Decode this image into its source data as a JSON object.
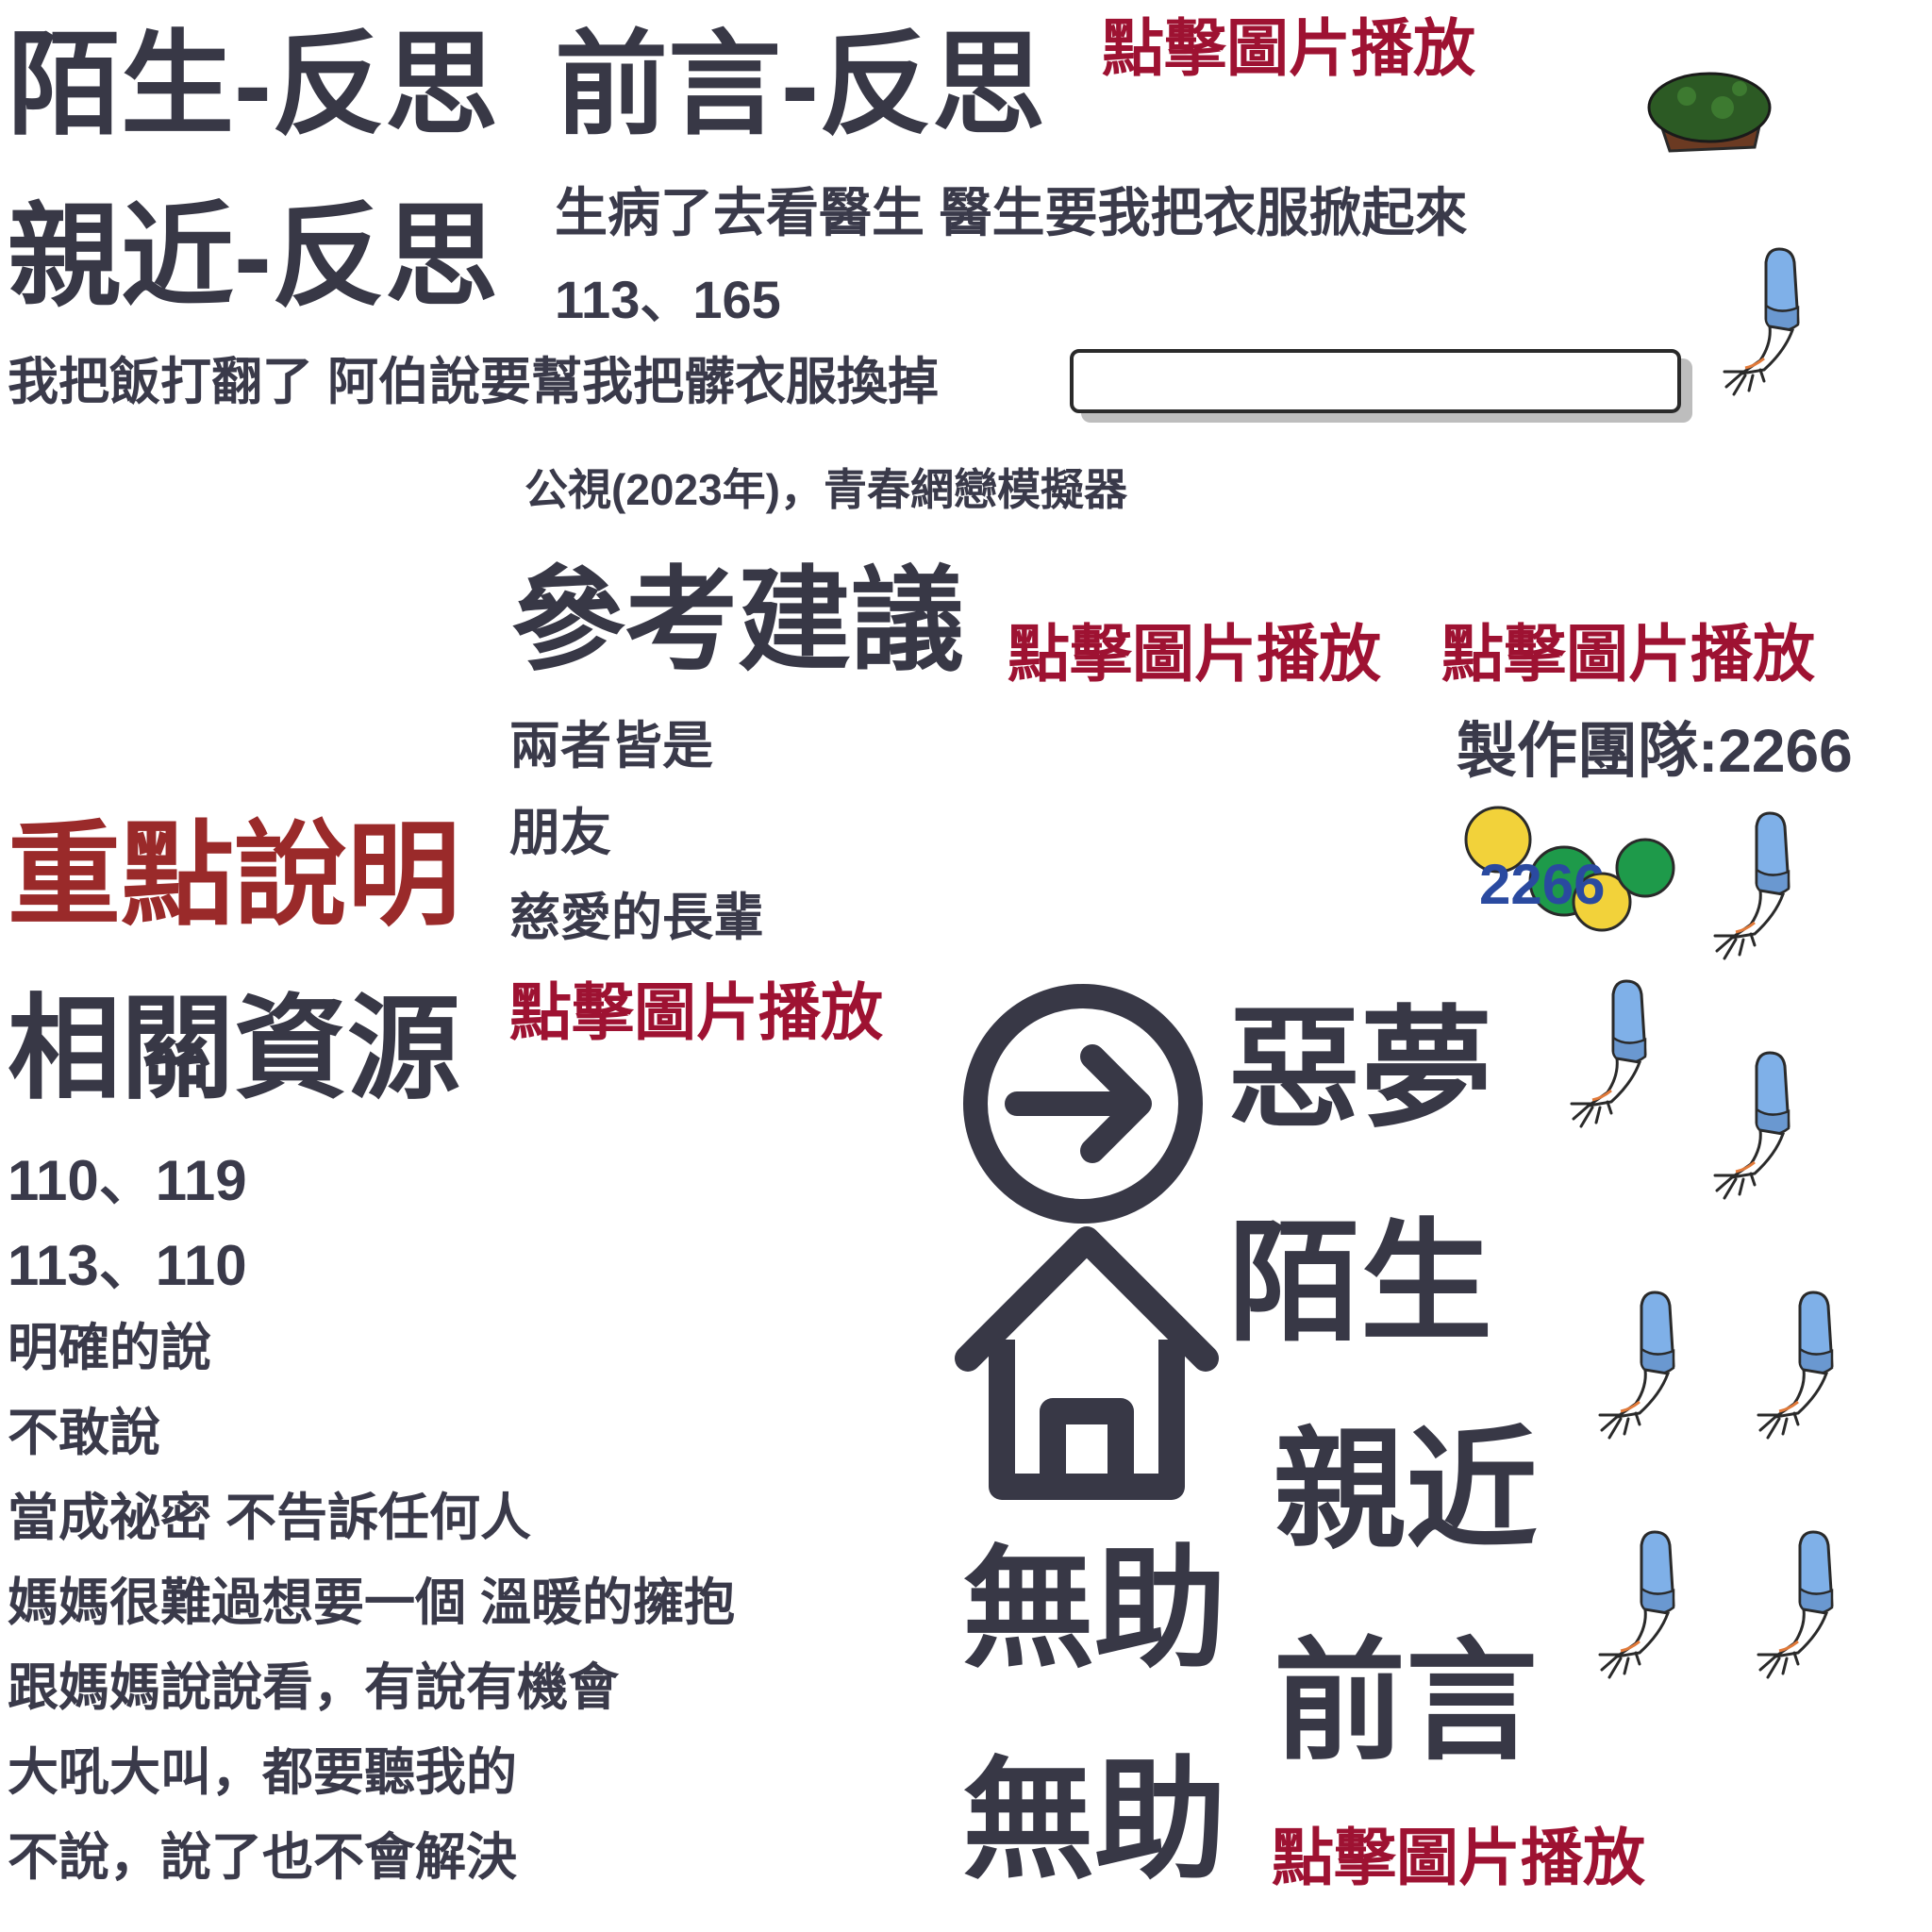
{
  "titles": {
    "stranger_reflect": "陌生-反思",
    "preface_reflect": "前言-反思",
    "close_reflect": "親近-反思",
    "key_points": "重點說明",
    "resources": "相關資源",
    "suggestions": "參考建議"
  },
  "play_label": "點擊圖片播放",
  "scenarios": {
    "doctor": "生病了去看醫生 醫生要我把衣服掀起來",
    "codes_1": "113、165",
    "uncle": "我把飯打翻了 阿伯說要幫我把髒衣服換掉"
  },
  "source": "公視(2023年)，青春網戀模擬器",
  "team": "製作團隊:2266",
  "answers": [
    "兩者皆是",
    "朋友",
    "慈愛的長輩"
  ],
  "resource_lines": [
    "110、119",
    "113、110",
    "明確的說",
    "不敢說",
    "當成祕密 不告訴任何人",
    "媽媽很難過想要一個 溫暖的擁抱",
    "跟媽媽說說看，有說有機會",
    "大吼大叫，都要聽我的",
    "不說，說了也不會解決"
  ],
  "nav": {
    "nightmare": "惡夢",
    "stranger": "陌生",
    "close": "親近",
    "preface": "前言",
    "helpless_1": "無助",
    "helpless_2": "無助"
  },
  "logo_text": "2266",
  "icons": [
    "arrow-circle-icon",
    "home-icon",
    "hand-icon",
    "turtle-shell-icon"
  ],
  "colors": {
    "text_dark": "#383846",
    "play_red": "#9e1232",
    "key_red": "#9a2a2a",
    "sleeve_blue": "#7fb0e8"
  }
}
